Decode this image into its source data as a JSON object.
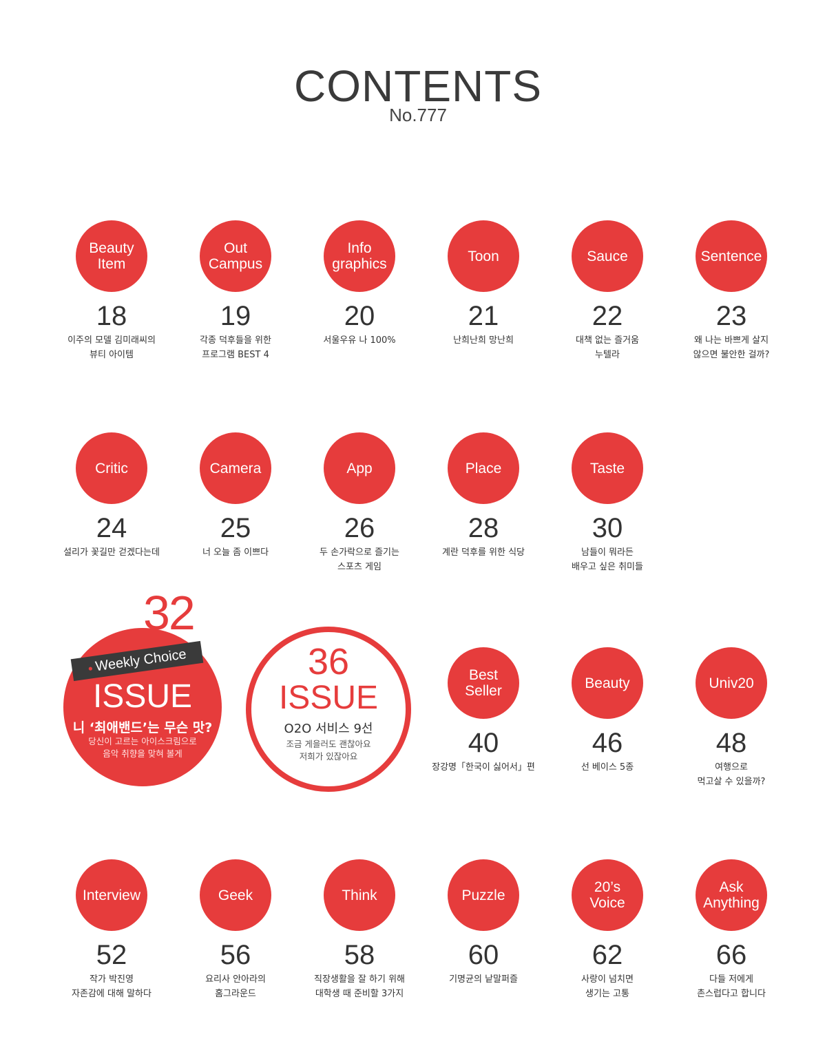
{
  "header": {
    "title": "CONTENTS",
    "issue_number": "No.777"
  },
  "row1": [
    {
      "label": "Beauty\nItem",
      "page": "18",
      "desc": "이주의 모델 김미래씨의\n뷰티 아이템"
    },
    {
      "label": "Out\nCampus",
      "page": "19",
      "desc": "각종 덕후들을 위한\n프로그램 BEST 4"
    },
    {
      "label": "Info\ngraphics",
      "page": "20",
      "desc": "서울우유 나 100%"
    },
    {
      "label": "Toon",
      "page": "21",
      "desc": "난희난희 망난희"
    },
    {
      "label": "Sauce",
      "page": "22",
      "desc": "대책 없는 즐거움\n누텔라"
    },
    {
      "label": "Sentence",
      "page": "23",
      "desc": "왜 나는 바쁘게 살지\n않으면 불안한 걸까?"
    }
  ],
  "row2": [
    {
      "label": "Critic",
      "page": "24",
      "desc": "설리가 꽃길만 걷겠다는데"
    },
    {
      "label": "Camera",
      "page": "25",
      "desc": "너 오늘 좀 이쁘다"
    },
    {
      "label": "App",
      "page": "26",
      "desc": "두 손가락으로 즐기는\n스포츠 게임"
    },
    {
      "label": "Place",
      "page": "28",
      "desc": "계란 덕후를 위한 식당"
    },
    {
      "label": "Taste",
      "page": "30",
      "desc": "남들이 뭐라든\n배우고 싶은 취미들"
    }
  ],
  "featured": {
    "issue32": {
      "page": "32",
      "banner": "Weekly Choice",
      "section": "ISSUE",
      "headline": "니 ‘최애밴드’는 무슨 맛?",
      "sub": "당신이 고르는 아이스크림으로\n음악 취향을 맞혀 볼게"
    },
    "issue36": {
      "page": "36",
      "section": "ISSUE",
      "headline": "O2O 서비스 9선",
      "sub": "조금 게을러도 괜찮아요\n저희가 있잖아요"
    }
  },
  "row3": [
    {
      "label": "Best\nSeller",
      "page": "40",
      "desc": "장강명「한국이 싫어서」편"
    },
    {
      "label": "Beauty",
      "page": "46",
      "desc": "선 베이스 5종"
    },
    {
      "label": "Univ20",
      "page": "48",
      "desc": "여행으로\n먹고살 수 있을까?"
    }
  ],
  "row4": [
    {
      "label": "Interview",
      "page": "52",
      "desc": "작가 박진영\n자존감에 대해 말하다"
    },
    {
      "label": "Geek",
      "page": "56",
      "desc": "요리사 안아라의\n홈그라운드"
    },
    {
      "label": "Think",
      "page": "58",
      "desc": "직장생활을 잘 하기 위해\n대학생 때 준비할 3가지"
    },
    {
      "label": "Puzzle",
      "page": "60",
      "desc": "기명균의 낱말퍼즐"
    },
    {
      "label": "20’s\nVoice",
      "page": "62",
      "desc": "사랑이 넘치면\n생기는 고통"
    },
    {
      "label": "Ask\nAnything",
      "page": "66",
      "desc": "다들 저에게\n촌스럽다고 합니다"
    }
  ],
  "colors": {
    "accent": "#e63c3c",
    "text": "#333333",
    "banner": "#3a3a3a"
  }
}
